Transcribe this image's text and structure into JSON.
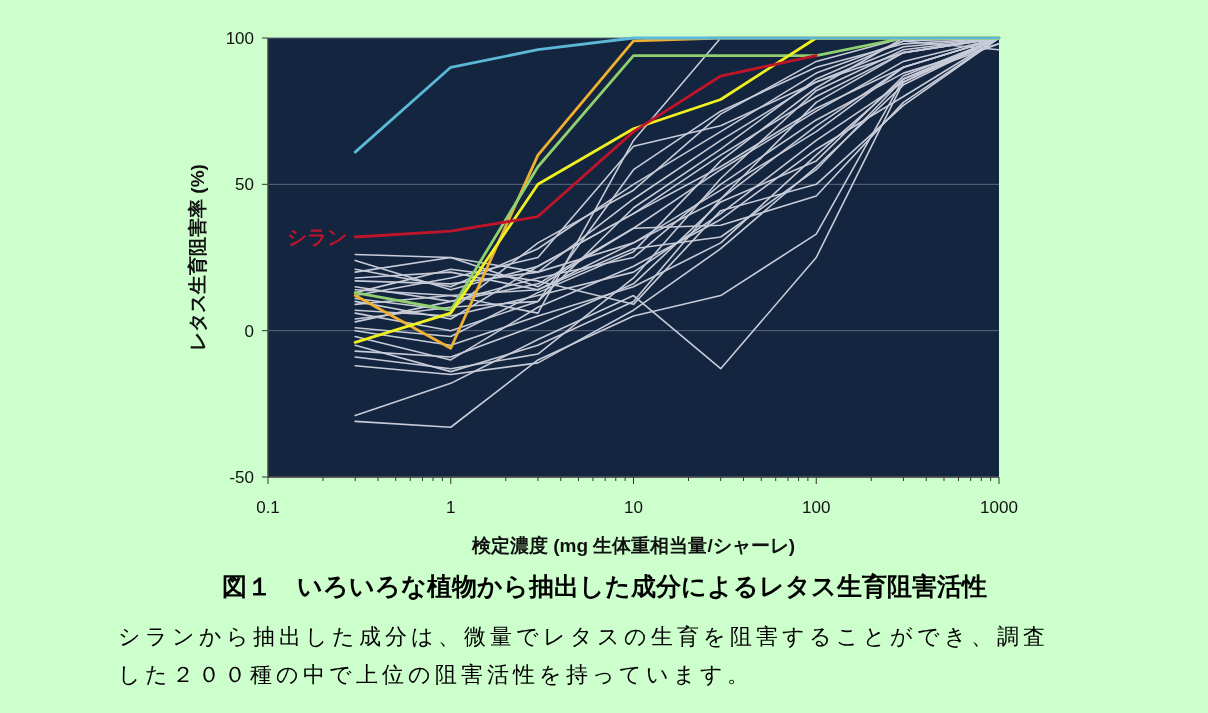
{
  "chart_data": {
    "type": "line",
    "title": "図１　いろいろな植物から抽出した成分によるレタス生育阻害活性",
    "xlabel": "検定濃度 (mg 生体重相当量/シャーレ)",
    "ylabel": "レタス生育阻害率 (%)",
    "annotations": [
      "シランから抽出した成分は、微量でレタスの生育を阻害することができ、調査した２００種の中で上位の阻害活性を持っています。"
    ],
    "log": "x",
    "grid": "y",
    "xlim": [
      0.1,
      1000
    ],
    "ylim": [
      -50,
      100
    ],
    "xticks": [
      0.1,
      1,
      10,
      100,
      1000
    ],
    "yticks": [
      -50,
      0,
      50,
      100
    ],
    "x": [
      0.3,
      1,
      3,
      10,
      30,
      100,
      300,
      1000
    ],
    "series": [
      {
        "color": "#c8ccd8",
        "values": [
          26,
          25,
          20,
          30,
          45,
          70,
          90,
          100
        ]
      },
      {
        "color": "#c8ccd8",
        "values": [
          24,
          14,
          22,
          40,
          60,
          80,
          95,
          100
        ]
      },
      {
        "color": "#c8ccd8",
        "values": [
          20,
          25,
          15,
          35,
          55,
          75,
          92,
          100
        ]
      },
      {
        "color": "#c8ccd8",
        "values": [
          17,
          16,
          20,
          45,
          65,
          85,
          97,
          100
        ]
      },
      {
        "color": "#c8ccd8",
        "values": [
          15,
          10,
          18,
          25,
          50,
          72,
          88,
          98
        ]
      },
      {
        "color": "#c8ccd8",
        "values": [
          9,
          12,
          14,
          30,
          48,
          68,
          90,
          100
        ]
      },
      {
        "color": "#c8ccd8",
        "values": [
          7,
          5,
          12,
          20,
          40,
          65,
          85,
          100
        ]
      },
      {
        "color": "#c8ccd8",
        "values": [
          4,
          8,
          10,
          55,
          75,
          90,
          98,
          100
        ]
      },
      {
        "color": "#c8ccd8",
        "values": [
          0,
          -5,
          5,
          15,
          30,
          60,
          86,
          100
        ]
      },
      {
        "color": "#c8ccd8",
        "values": [
          -2,
          -10,
          8,
          22,
          38,
          62,
          80,
          100
        ]
      },
      {
        "color": "#c8ccd8",
        "values": [
          -5,
          -14,
          -5,
          10,
          45,
          78,
          95,
          100
        ]
      },
      {
        "color": "#c8ccd8",
        "values": [
          -9,
          -13,
          -8,
          18,
          52,
          82,
          96,
          100
        ]
      },
      {
        "color": "#c8ccd8",
        "values": [
          -12,
          -15,
          -11,
          7,
          28,
          56,
          84,
          100
        ]
      },
      {
        "color": "#c8ccd8",
        "values": [
          -29,
          -18,
          -3,
          12,
          -13,
          25,
          85,
          100
        ]
      },
      {
        "color": "#c8ccd8",
        "values": [
          -31,
          -33,
          -10,
          5,
          12,
          33,
          86,
          100
        ]
      },
      {
        "color": "#c8ccd8",
        "values": [
          12,
          18,
          25,
          63,
          70,
          85,
          95,
          100
        ]
      },
      {
        "color": "#c8ccd8",
        "values": [
          21,
          15,
          28,
          50,
          68,
          88,
          99,
          100
        ]
      },
      {
        "color": "#c8ccd8",
        "values": [
          10,
          4,
          22,
          40,
          56,
          76,
          90,
          100
        ]
      },
      {
        "color": "#c8ccd8",
        "values": [
          3,
          10,
          16,
          35,
          36,
          46,
          78,
          100
        ]
      },
      {
        "color": "#c8ccd8",
        "values": [
          14,
          12,
          6,
          65,
          100,
          100,
          100,
          100
        ]
      },
      {
        "color": "#c8ccd8",
        "values": [
          18,
          20,
          14,
          28,
          32,
          55,
          86,
          98
        ]
      },
      {
        "color": "#c8ccd8",
        "values": [
          1,
          -2,
          13,
          27,
          58,
          83,
          100,
          100
        ]
      },
      {
        "color": "#c8ccd8",
        "values": [
          6,
          0,
          10,
          42,
          62,
          86,
          99,
          96
        ]
      },
      {
        "color": "#c8ccd8",
        "values": [
          -7,
          -9,
          2,
          16,
          44,
          58,
          87,
          100
        ]
      },
      {
        "color": "#c8ccd8",
        "values": [
          11,
          7,
          30,
          48,
          74,
          92,
          100,
          100
        ]
      },
      {
        "color": "#c8ccd8",
        "values": [
          13,
          21,
          17,
          9,
          41,
          50,
          77,
          100
        ]
      },
      {
        "color": "#f0b030",
        "values": [
          12,
          -6,
          60,
          99,
          100,
          100,
          100,
          100
        ]
      },
      {
        "color": "#90d070",
        "values": [
          13,
          7,
          56,
          94,
          94,
          94,
          100,
          100
        ]
      },
      {
        "color": "#f0f020",
        "values": [
          -4,
          6,
          50,
          69,
          79,
          100,
          100,
          100
        ]
      },
      {
        "name": "シラン",
        "color": "#c0142a",
        "values": [
          32,
          34,
          39,
          68,
          87,
          94,
          null,
          null
        ]
      },
      {
        "color": "#5bb8d6",
        "values": [
          61,
          90,
          96,
          100,
          100,
          100,
          100,
          100
        ]
      }
    ]
  }
}
